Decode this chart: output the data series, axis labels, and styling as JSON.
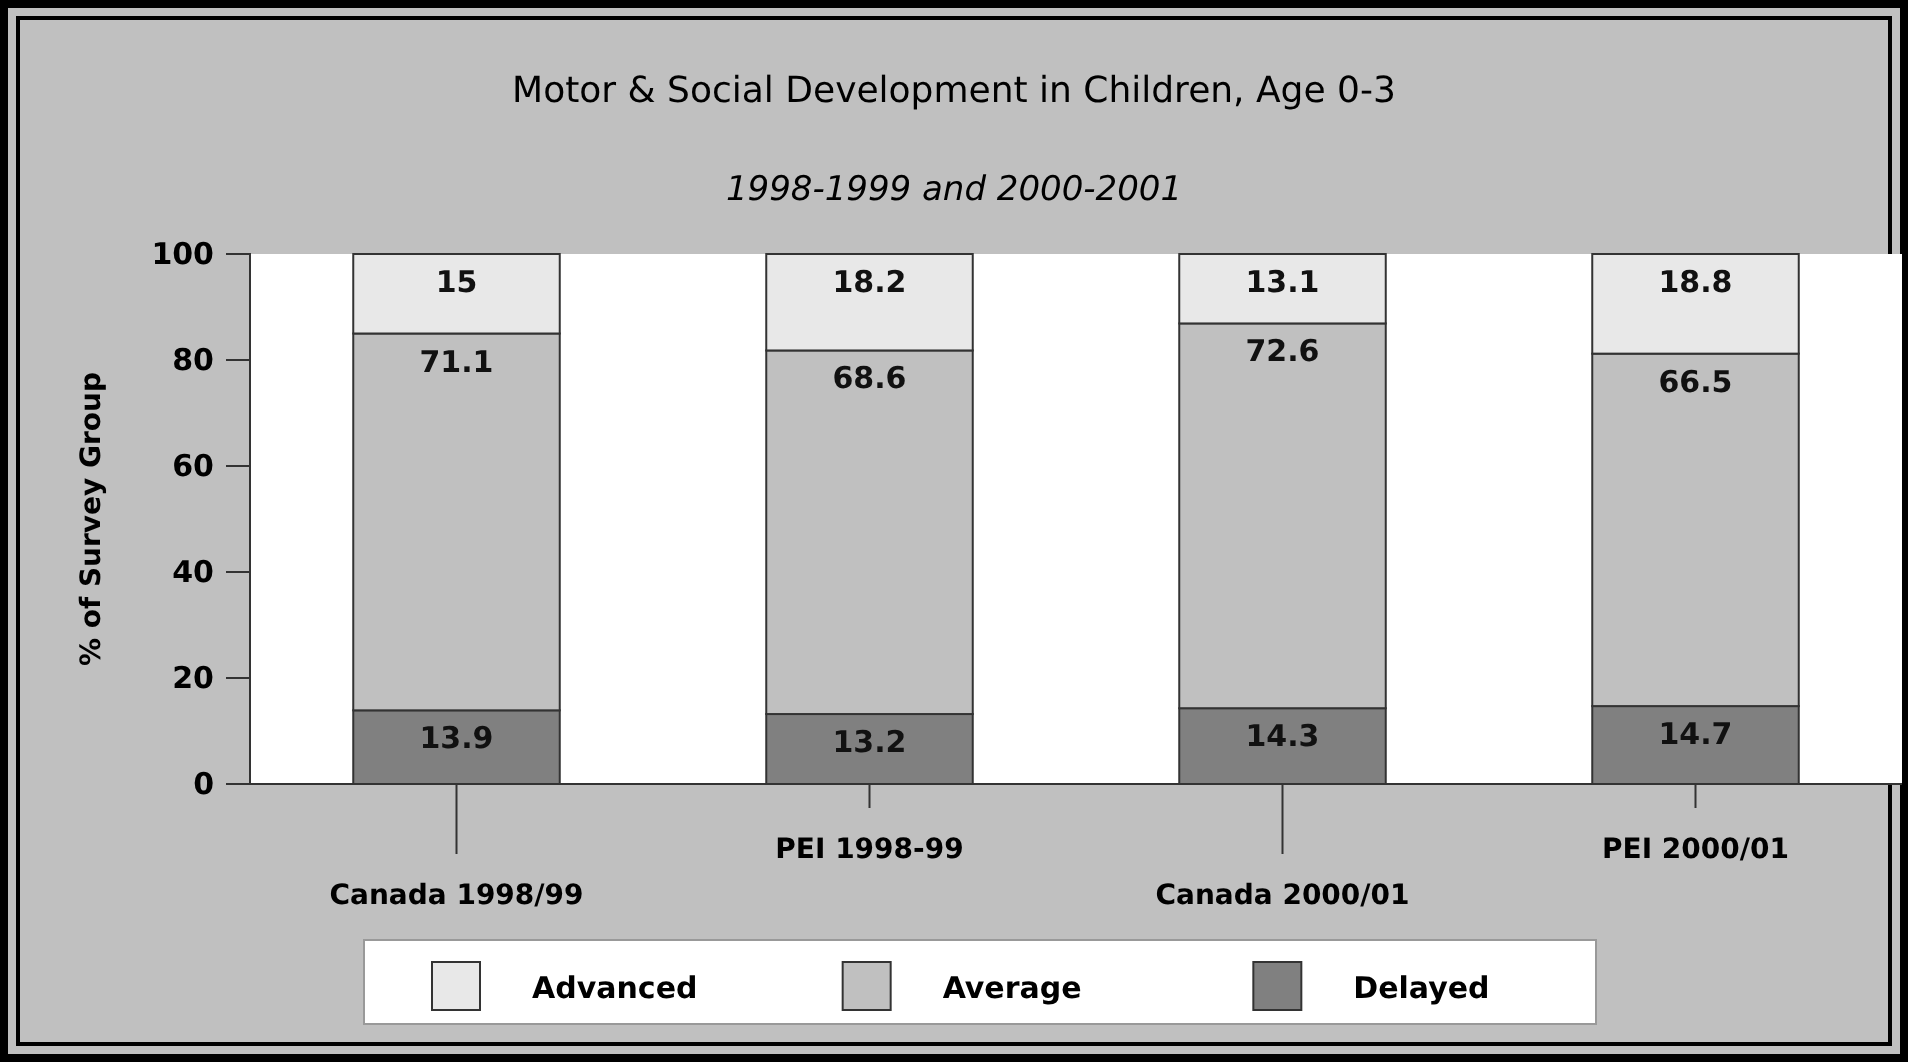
{
  "chart_data": {
    "type": "bar",
    "title": "Motor & Social Development in Children, Age 0-3",
    "subtitle": "1998-1999 and 2000-2001",
    "ylabel": "% of Survey Group",
    "categories": [
      "Canada 1998/99",
      "PEI 1998-99",
      "Canada 2000/01",
      "PEI 2000/01"
    ],
    "series": [
      {
        "name": "Delayed",
        "color": "#808080",
        "values": [
          13.9,
          13.2,
          14.3,
          14.7
        ]
      },
      {
        "name": "Average",
        "color": "#c0c0c0",
        "values": [
          71.1,
          68.6,
          72.6,
          66.5
        ]
      },
      {
        "name": "Advanced",
        "color": "#e8e8e8",
        "values": [
          15,
          18.2,
          13.1,
          18.8
        ]
      }
    ],
    "stacked": true,
    "data_labels": true,
    "ylim": [
      0,
      100
    ],
    "yticks": [
      0,
      20,
      40,
      60,
      80,
      100
    ],
    "grid": false,
    "legend": "bottom"
  }
}
